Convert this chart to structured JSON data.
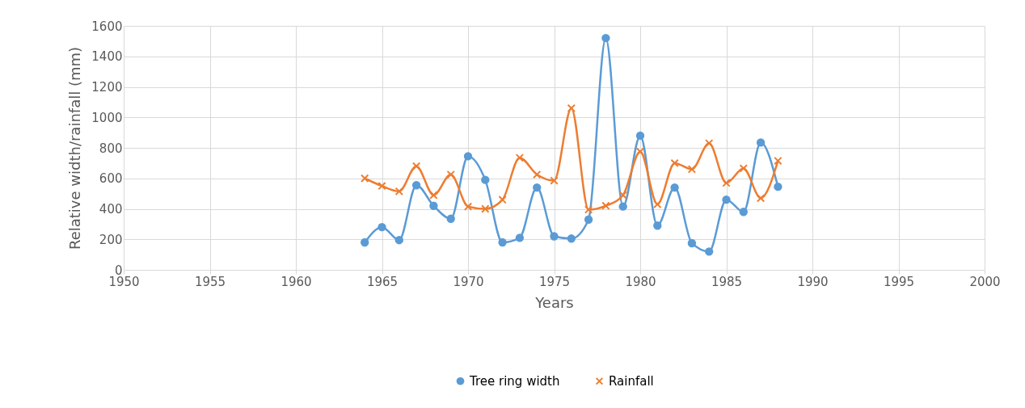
{
  "chart_data": {
    "type": "line",
    "xlabel": "Years",
    "ylabel": "Relative width/rainfall (mm)",
    "x": [
      1964,
      1965,
      1966,
      1967,
      1968,
      1969,
      1970,
      1971,
      1972,
      1973,
      1974,
      1975,
      1976,
      1977,
      1978,
      1979,
      1980,
      1981,
      1982,
      1983,
      1984,
      1985,
      1986,
      1987,
      1988
    ],
    "series": [
      {
        "name": "Tree ring width",
        "color": "#5b9bd5",
        "marker": "circle",
        "values": [
          180,
          280,
          195,
          555,
          420,
          335,
          745,
          590,
          180,
          210,
          540,
          220,
          205,
          330,
          1520,
          415,
          880,
          290,
          540,
          175,
          120,
          460,
          380,
          835,
          545
        ]
      },
      {
        "name": "Rainfall",
        "color": "#ed7d31",
        "marker": "cross",
        "values": [
          600,
          550,
          515,
          680,
          490,
          625,
          415,
          400,
          460,
          735,
          625,
          585,
          1060,
          395,
          420,
          490,
          775,
          430,
          700,
          660,
          830,
          570,
          665,
          470,
          715
        ]
      }
    ],
    "xlim": [
      1950,
      2000
    ],
    "xticks": [
      1950,
      1955,
      1960,
      1965,
      1970,
      1975,
      1980,
      1985,
      1990,
      1995,
      2000
    ],
    "ylim": [
      0,
      1600
    ],
    "yticks": [
      0,
      200,
      400,
      600,
      800,
      1000,
      1200,
      1400,
      1600
    ],
    "grid": true,
    "legend": "bottom"
  }
}
